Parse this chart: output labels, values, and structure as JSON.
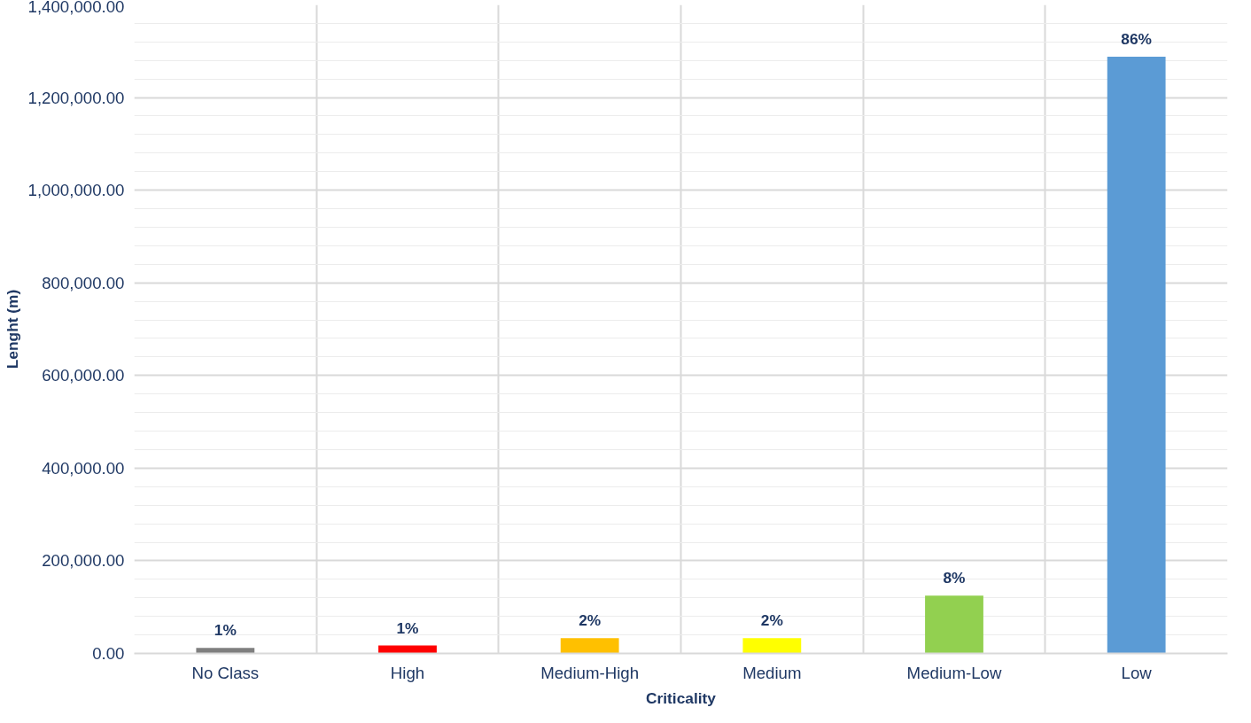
{
  "chart_data": {
    "type": "bar",
    "xlabel": "Criticality",
    "ylabel": "Lenght (m)",
    "categories": [
      "No Class",
      "High",
      "Medium-High",
      "Medium",
      "Medium-Low",
      "Low"
    ],
    "values": [
      12000,
      17000,
      33000,
      33000,
      125000,
      1288000
    ],
    "colors": [
      "#7f7f7f",
      "#ff0000",
      "#ffc000",
      "#ffff00",
      "#92d050",
      "#5b9bd5"
    ],
    "annotations": [
      {
        "text": "1%",
        "x": "No Class",
        "y": 12000
      },
      {
        "text": "1%",
        "x": "High",
        "y": 17000
      },
      {
        "text": "2%",
        "x": "Medium-High",
        "y": 33000
      },
      {
        "text": "2%",
        "x": "Medium",
        "y": 33000
      },
      {
        "text": "8%",
        "x": "Medium-Low",
        "y": 125000
      },
      {
        "text": "86%",
        "x": "Low",
        "y": 1288000
      }
    ],
    "ylim": [
      0,
      1400000
    ],
    "yticks": [
      {
        "value": 0,
        "label": "0.00"
      },
      {
        "value": 200000,
        "label": "200,000.00"
      },
      {
        "value": 400000,
        "label": "400,000.00"
      },
      {
        "value": 600000,
        "label": "600,000.00"
      },
      {
        "value": 800000,
        "label": "800,000.00"
      },
      {
        "value": 1000000,
        "label": "1,000,000.00"
      },
      {
        "value": 1200000,
        "label": "1,200,000.00"
      },
      {
        "value": 1400000,
        "label": "1,400,000.00"
      }
    ],
    "grid": true
  }
}
